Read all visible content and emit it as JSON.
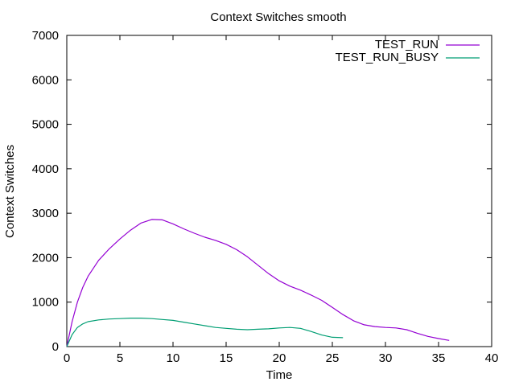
{
  "chart_data": {
    "type": "line",
    "title": "Context Switches smooth",
    "xlabel": "Time",
    "ylabel": "Context Switches",
    "xlim": [
      0,
      40
    ],
    "ylim": [
      0,
      7000
    ],
    "xticks": [
      0,
      5,
      10,
      15,
      20,
      25,
      30,
      35,
      40
    ],
    "yticks": [
      0,
      1000,
      2000,
      3000,
      4000,
      5000,
      6000,
      7000
    ],
    "grid": false,
    "legend_position": "top-right",
    "series": [
      {
        "name": "TEST_RUN",
        "color": "#9400d3",
        "x": [
          0,
          0.5,
          1,
          1.5,
          2,
          3,
          4,
          5,
          6,
          7,
          8,
          9,
          10,
          11,
          12,
          13,
          14,
          15,
          16,
          17,
          18,
          19,
          20,
          21,
          22,
          23,
          24,
          25,
          26,
          27,
          28,
          29,
          30,
          31,
          32,
          33,
          34,
          35,
          36
        ],
        "y": [
          0,
          560,
          1000,
          1330,
          1580,
          1940,
          2200,
          2420,
          2620,
          2780,
          2860,
          2850,
          2760,
          2650,
          2550,
          2460,
          2390,
          2300,
          2180,
          2020,
          1830,
          1640,
          1480,
          1360,
          1270,
          1160,
          1040,
          880,
          720,
          580,
          490,
          450,
          430,
          420,
          380,
          300,
          230,
          180,
          140
        ]
      },
      {
        "name": "TEST_RUN_BUSY",
        "color": "#009e73",
        "x": [
          0,
          0.5,
          1,
          1.5,
          2,
          3,
          4,
          5,
          6,
          7,
          8,
          9,
          10,
          11,
          12,
          13,
          14,
          15,
          16,
          17,
          18,
          19,
          20,
          21,
          22,
          23,
          24,
          25,
          26
        ],
        "y": [
          0,
          270,
          430,
          510,
          560,
          600,
          620,
          630,
          640,
          640,
          630,
          610,
          590,
          550,
          510,
          470,
          430,
          410,
          390,
          380,
          390,
          400,
          420,
          430,
          410,
          340,
          260,
          210,
          200
        ]
      }
    ]
  }
}
